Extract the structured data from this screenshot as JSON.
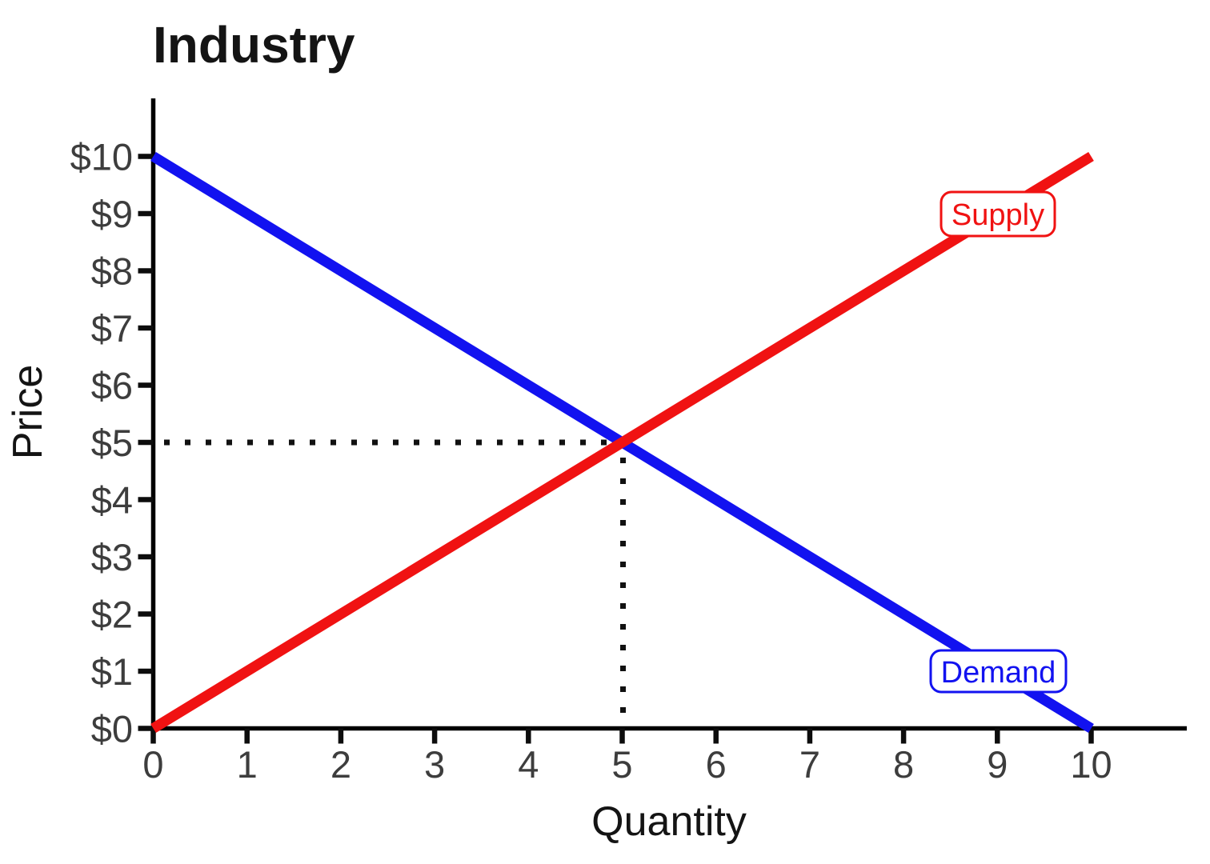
{
  "page": {
    "background": "#ffffff"
  },
  "chart_data": {
    "type": "line",
    "title": "Industry",
    "xlabel": "Quantity",
    "ylabel": "Price",
    "xlim": [
      0,
      11
    ],
    "ylim": [
      0,
      11
    ],
    "grid": false,
    "legend": "inline-boxed-labels-on-lines",
    "x_ticks": [
      0,
      1,
      2,
      3,
      4,
      5,
      6,
      7,
      8,
      9,
      10
    ],
    "x_tick_labels": [
      "0",
      "1",
      "2",
      "3",
      "4",
      "5",
      "6",
      "7",
      "8",
      "9",
      "10"
    ],
    "y_ticks": [
      0,
      1,
      2,
      3,
      4,
      5,
      6,
      7,
      8,
      9,
      10
    ],
    "y_tick_labels": [
      "$0",
      "$1",
      "$2",
      "$3",
      "$4",
      "$5",
      "$6",
      "$7",
      "$8",
      "$9",
      "$10"
    ],
    "series": [
      {
        "name": "Demand",
        "label": "Demand",
        "color": "#1212f0",
        "x": [
          0,
          10
        ],
        "values": [
          10,
          0
        ]
      },
      {
        "name": "Supply",
        "label": "Supply",
        "color": "#f01212",
        "x": [
          0,
          10
        ],
        "values": [
          0,
          10
        ]
      }
    ],
    "equilibrium": {
      "quantity": 5,
      "price": 5,
      "price_label": "$5",
      "quantity_label": "5",
      "shown_with": "dotted guide lines"
    },
    "colors": {
      "axis": "#000000",
      "tick": "#0d0d0d",
      "tick_label": "#3d3d3d",
      "text": "#141414",
      "dotted_guide": "#111111",
      "label_box_fill": "#ffffff",
      "background": "#ffffff"
    }
  }
}
